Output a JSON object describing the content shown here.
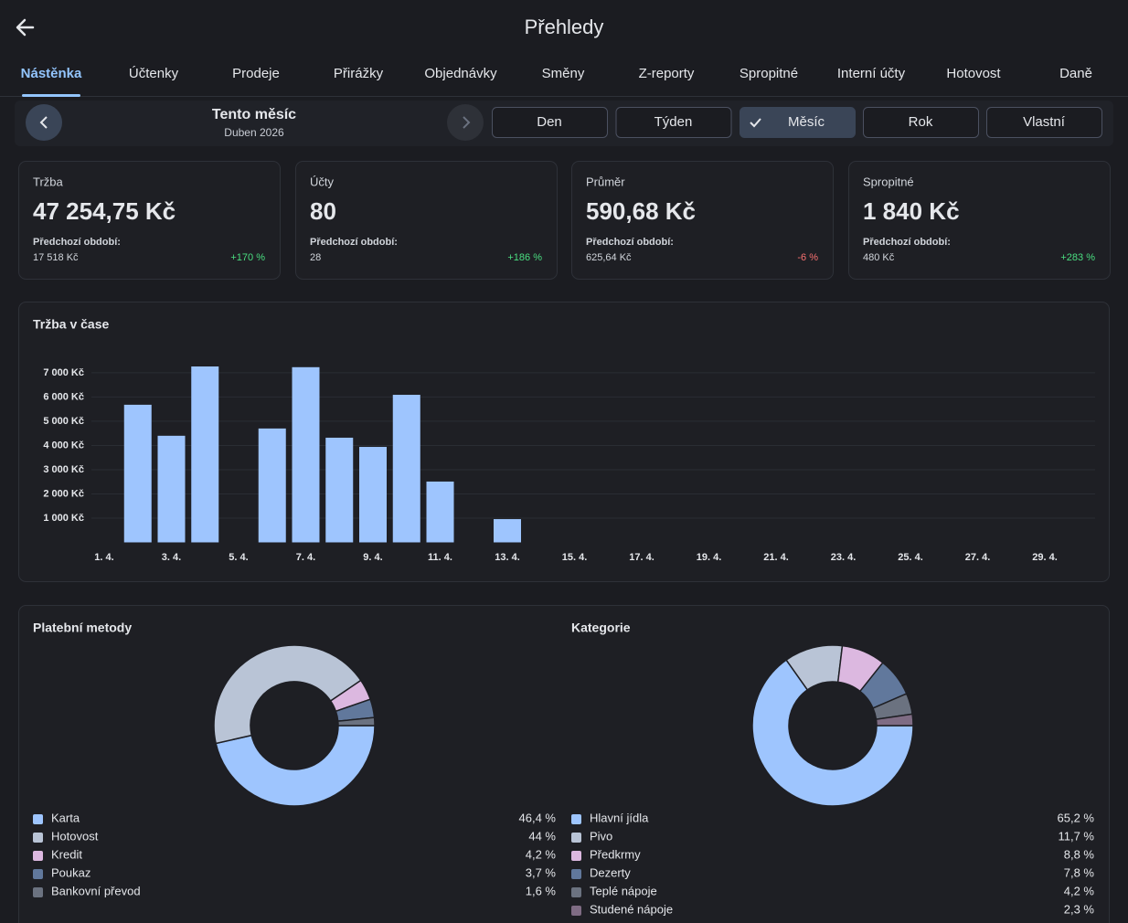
{
  "header": {
    "title": "Přehledy"
  },
  "tabs": {
    "items": [
      "Nástěnka",
      "Účtenky",
      "Prodeje",
      "Přirážky",
      "Objednávky",
      "Směny",
      "Z-reporty",
      "Spropitné",
      "Interní účty",
      "Hotovost",
      "Daně"
    ],
    "active": 0
  },
  "period": {
    "title": "Tento měsíc",
    "subtitle": "Duben 2026"
  },
  "range_buttons": {
    "items": [
      "Den",
      "Týden",
      "Měsíc",
      "Rok",
      "Vlastní"
    ],
    "active": 2
  },
  "kpis": [
    {
      "label": "Tržba",
      "value": "47 254,75 Kč",
      "previous_label": "Předchozí období:",
      "previous_value": "17 518 Kč",
      "change": "+170 %",
      "change_color": "#4ade80"
    },
    {
      "label": "Účty",
      "value": "80",
      "previous_label": "Předchozí období:",
      "previous_value": "28",
      "change": "+186 %",
      "change_color": "#4ade80"
    },
    {
      "label": "Průměr",
      "value": "590,68 Kč",
      "previous_label": "Předchozí období:",
      "previous_value": "625,64 Kč",
      "change": "-6 %",
      "change_color": "#f87171"
    },
    {
      "label": "Spropitné",
      "value": "1 840 Kč",
      "previous_label": "Předchozí období:",
      "previous_value": "480 Kč",
      "change": "+283 %",
      "change_color": "#4ade80"
    }
  ],
  "chart_data": [
    {
      "type": "bar",
      "title": "Tržba v čase",
      "color": "#9ec5fe",
      "grid": true,
      "categories": [
        "1. 4.",
        null,
        "3. 4.",
        null,
        "5. 4.",
        null,
        "7. 4.",
        null,
        "9. 4.",
        null,
        "11. 4.",
        null,
        "13. 4.",
        null,
        "15. 4.",
        null,
        "17. 4.",
        null,
        "19. 4.",
        null,
        "21. 4.",
        null,
        "23. 4.",
        null,
        "25. 4.",
        null,
        "27. 4.",
        null,
        "29. 4.",
        null
      ],
      "values": [
        0,
        5680,
        4400,
        7260,
        0,
        4700,
        7230,
        4320,
        3940,
        6090,
        2510,
        0,
        960,
        0,
        0,
        0,
        0,
        0,
        0,
        0,
        0,
        0,
        0,
        0,
        0,
        0,
        0,
        0,
        0,
        0
      ],
      "ylim": [
        0,
        7260
      ],
      "yticks": [
        {
          "value": 1000,
          "label": "1 000 Kč"
        },
        {
          "value": 2000,
          "label": "2 000 Kč"
        },
        {
          "value": 3000,
          "label": "3 000 Kč"
        },
        {
          "value": 4000,
          "label": "4 000 Kč"
        },
        {
          "value": 5000,
          "label": "5 000 Kč"
        },
        {
          "value": 6000,
          "label": "6 000 Kč"
        },
        {
          "value": 7000,
          "label": "7 000 Kč"
        }
      ]
    },
    {
      "type": "pie",
      "title": "Platební metody",
      "categories": [
        "Karta",
        "Hotovost",
        "Kredit",
        "Poukaz",
        "Bankovní převod"
      ],
      "values": [
        46.4,
        44,
        4.2,
        3.7,
        1.6
      ],
      "value_labels": [
        "46,4 %",
        "44 %",
        "4,2 %",
        "3,7 %",
        "1,6 %"
      ],
      "colors": [
        "#9ec5fe",
        "#b9c4d6",
        "#dcb8e0",
        "#61789c",
        "#6b7280"
      ]
    },
    {
      "type": "pie",
      "title": "Kategorie",
      "categories": [
        "Hlavní jídla",
        "Pivo",
        "Předkrmy",
        "Dezerty",
        "Teplé nápoje",
        "Studené nápoje"
      ],
      "values": [
        65.2,
        11.7,
        8.8,
        7.8,
        4.2,
        2.3
      ],
      "value_labels": [
        "65,2 %",
        "11,7 %",
        "8,8 %",
        "7,8 %",
        "4,2 %",
        "2,3 %"
      ],
      "colors": [
        "#9ec5fe",
        "#b9c4d6",
        "#dcb8e0",
        "#61789c",
        "#6b7280",
        "#7f6c84"
      ]
    }
  ]
}
